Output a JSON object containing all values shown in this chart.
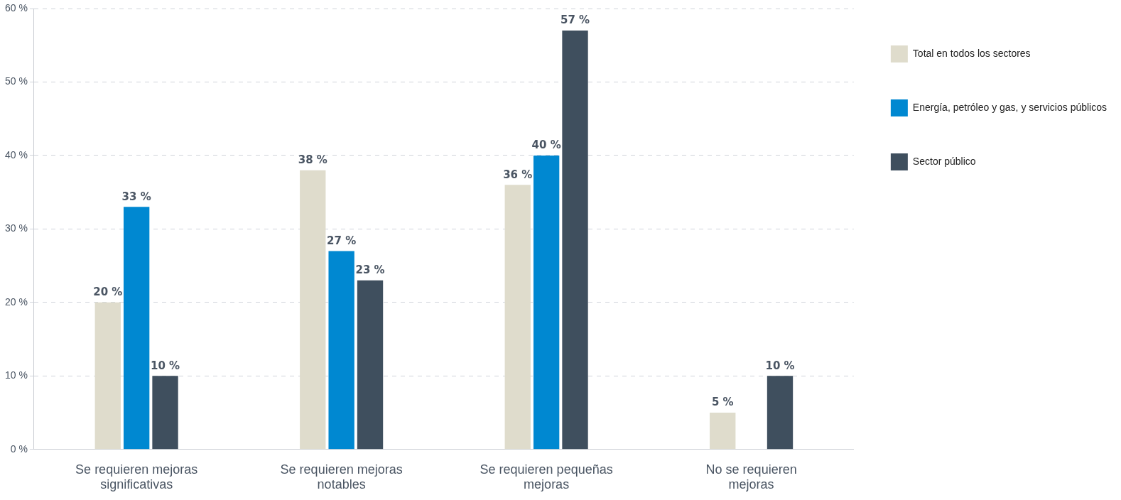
{
  "chart_data": {
    "type": "bar",
    "categories": [
      "Se requieren mejoras significativas",
      "Se requieren mejoras notables",
      "Se requieren pequeñas mejoras",
      "No se requieren mejoras"
    ],
    "series": [
      {
        "name": "Total en todos los sectores",
        "color": "#dfdccc",
        "values": [
          20,
          38,
          36,
          5
        ],
        "value_labels": [
          "20 %",
          "38 %",
          "36 %",
          "5 %"
        ]
      },
      {
        "name": "Energía, petróleo y gas, y servicios públicos",
        "color": "#0088d1",
        "values": [
          33,
          27,
          40,
          null
        ],
        "value_labels": [
          "33 %",
          "27 %",
          "40 %",
          null
        ]
      },
      {
        "name": "Sector público",
        "color": "#3f4f5e",
        "values": [
          10,
          23,
          57,
          10
        ],
        "value_labels": [
          "10 %",
          "23 %",
          "57 %",
          "10 %"
        ]
      }
    ],
    "ylim": [
      0,
      60
    ],
    "yticks": [
      {
        "value": 0,
        "label": "0 %"
      },
      {
        "value": 10,
        "label": "10 %"
      },
      {
        "value": 20,
        "label": "20 %"
      },
      {
        "value": 30,
        "label": "30 %"
      },
      {
        "value": 40,
        "label": "40 %"
      },
      {
        "value": 50,
        "label": "50 %"
      },
      {
        "value": 60,
        "label": "60 %"
      }
    ],
    "grid": "y",
    "legend": "top right"
  }
}
